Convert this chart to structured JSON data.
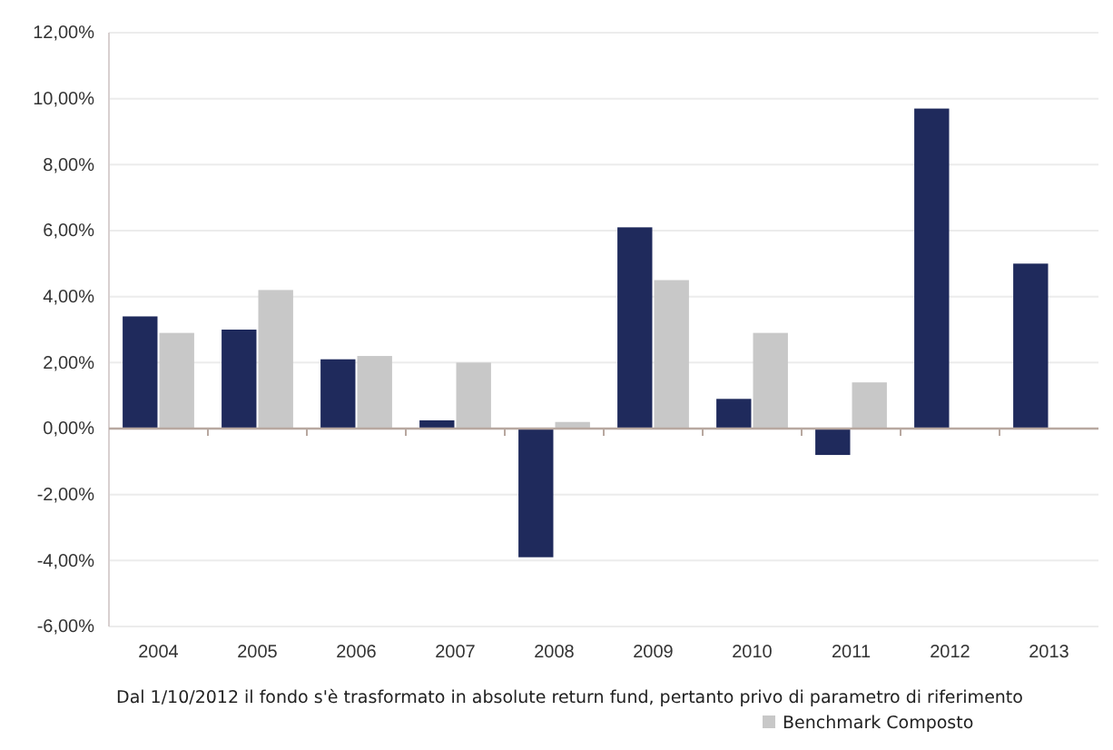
{
  "chart_data": {
    "type": "bar",
    "categories": [
      "2004",
      "2005",
      "2006",
      "2007",
      "2008",
      "2009",
      "2010",
      "2011",
      "2012",
      "2013"
    ],
    "series": [
      {
        "color": "#1f2a5c",
        "values": [
          3.4,
          3.0,
          2.1,
          0.25,
          -3.9,
          6.1,
          0.9,
          -0.8,
          9.7,
          5.0
        ]
      },
      {
        "name": "Benchmark Composto",
        "color": "#c8c8c8",
        "values": [
          2.9,
          4.2,
          2.2,
          2.0,
          0.2,
          4.5,
          2.9,
          1.4,
          null,
          null
        ]
      }
    ],
    "ylim": [
      -6,
      12
    ],
    "yticks": [
      {
        "value": -6,
        "label": "-6,00%"
      },
      {
        "value": -4,
        "label": "-4,00%"
      },
      {
        "value": -2,
        "label": "-2,00%"
      },
      {
        "value": 0,
        "label": "0,00%"
      },
      {
        "value": 2,
        "label": "2,00%"
      },
      {
        "value": 4,
        "label": "4,00%"
      },
      {
        "value": 6,
        "label": "6,00%"
      },
      {
        "value": 8,
        "label": "8,00%"
      },
      {
        "value": 10,
        "label": "10,00%"
      },
      {
        "value": 12,
        "label": "12,00%"
      }
    ],
    "grid": "y",
    "legend": "bottom",
    "ref_lines": [
      {
        "axis": "y",
        "value": 0,
        "color": "#b8a8a0"
      }
    ],
    "annotations": [
      "Dal 1/10/2012 il fondo s'è trasformato in absolute return fund, pertanto privo di parametro di riferimento"
    ]
  }
}
